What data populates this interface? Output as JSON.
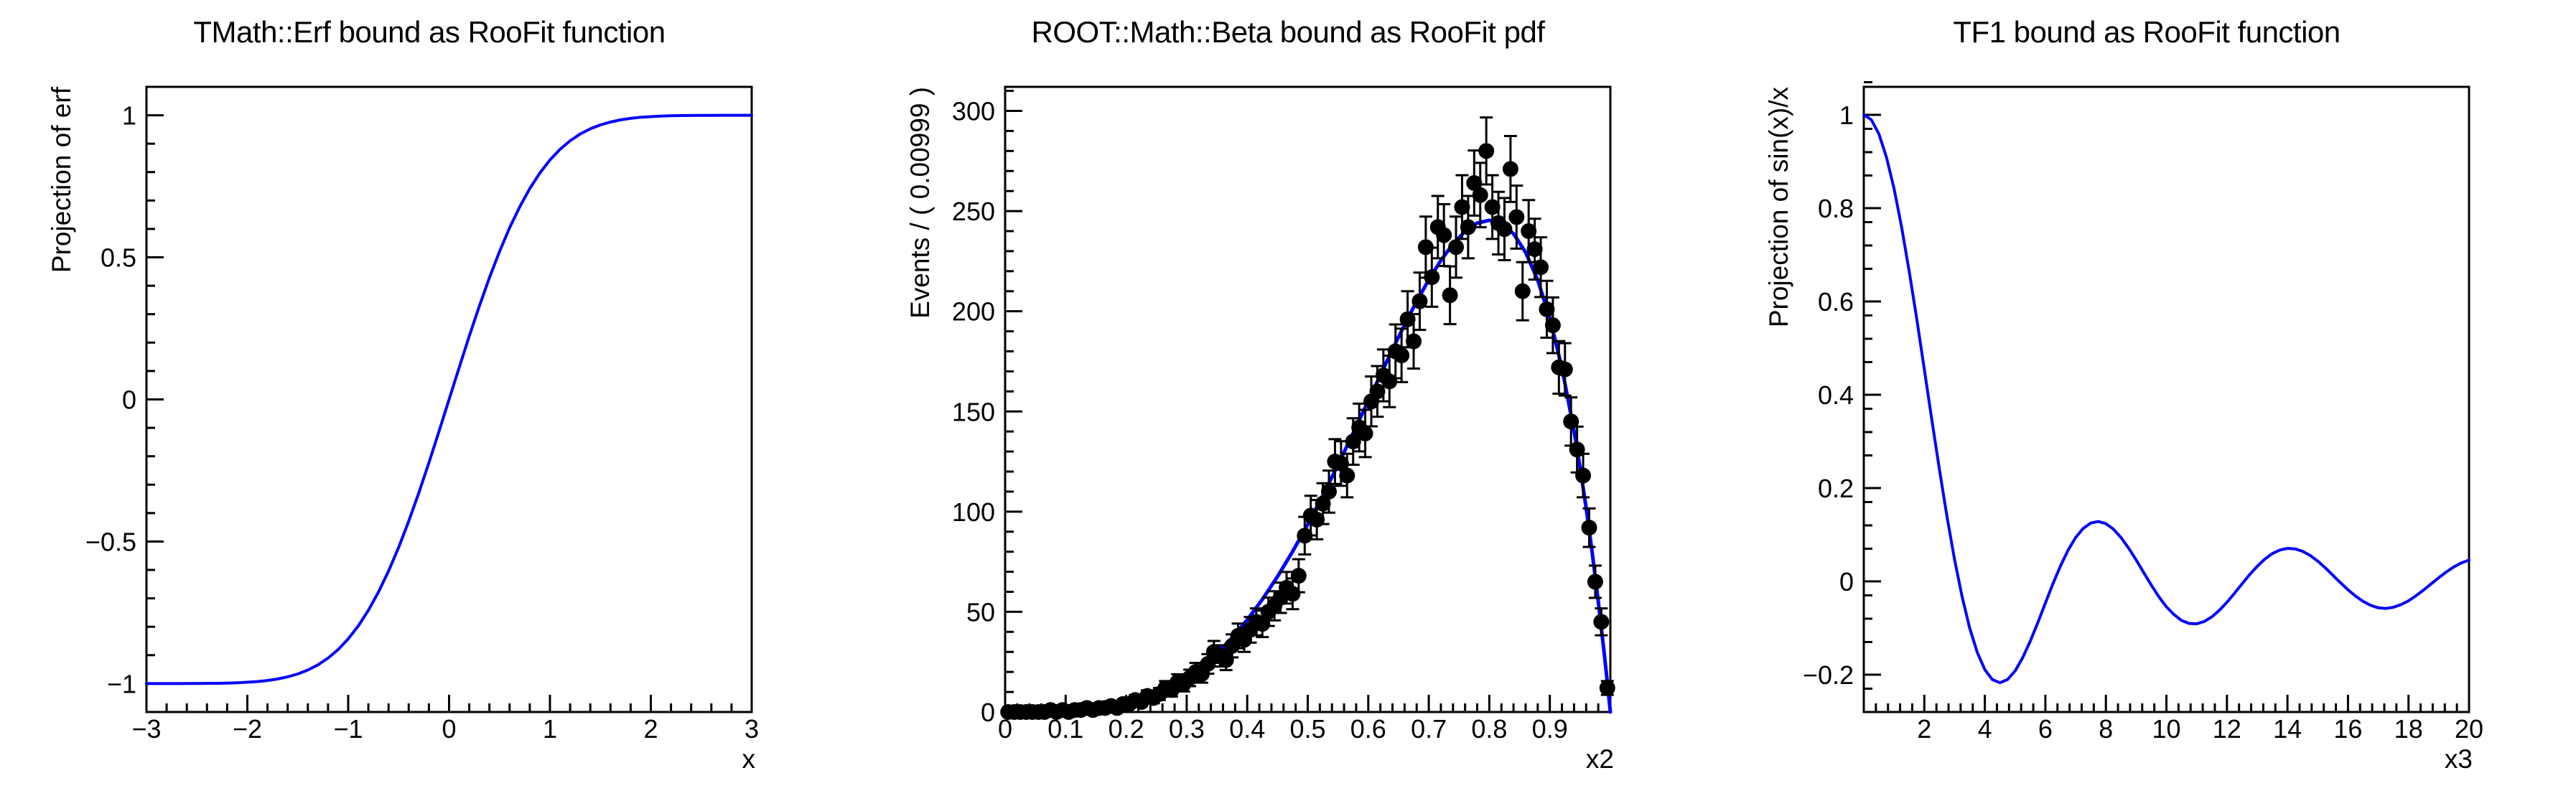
{
  "canvas": {
    "background": "#ffffff",
    "axis_color": "#000000",
    "curve_color": "#0000ff",
    "marker_color": "#000000"
  },
  "chart_data": [
    {
      "type": "line",
      "title": "TMath::Erf bound as RooFit function",
      "xlabel": "x",
      "ylabel": "Projection of erf",
      "xlim": [
        -3,
        3
      ],
      "ylim": [
        -1.1,
        1.1
      ],
      "grid": false,
      "legend": "none",
      "x_ticks": {
        "values": [
          -3,
          -2,
          -1,
          0,
          1,
          2,
          3
        ],
        "labels": [
          "−3",
          "−2",
          "−1",
          "0",
          "1",
          "2",
          "3"
        ],
        "minor_step": 0.2
      },
      "y_ticks": {
        "values": [
          -1,
          -0.5,
          0,
          0.5,
          1
        ],
        "labels": [
          "−1",
          "−0.5",
          "0",
          "0.5",
          "1"
        ],
        "minor_step": 0.1
      },
      "series": [
        {
          "name": "erf-curve",
          "style": "line",
          "color": "#0000ff",
          "width": 4,
          "x_start": -3,
          "x_step": 0.1,
          "y": [
            -1.0,
            -1.0,
            -0.9999,
            -0.9999,
            -0.9998,
            -0.9996,
            -0.9993,
            -0.9989,
            -0.9981,
            -0.997,
            -0.9953,
            -0.9928,
            -0.9891,
            -0.9838,
            -0.9763,
            -0.9661,
            -0.9523,
            -0.934,
            -0.9103,
            -0.8802,
            -0.8427,
            -0.7969,
            -0.7421,
            -0.6778,
            -0.6039,
            -0.5205,
            -0.4284,
            -0.3286,
            -0.2227,
            -0.1125,
            0,
            0.1125,
            0.2227,
            0.3286,
            0.4284,
            0.5205,
            0.6039,
            0.6778,
            0.7421,
            0.7969,
            0.8427,
            0.8802,
            0.9103,
            0.934,
            0.9523,
            0.9661,
            0.9763,
            0.9838,
            0.9891,
            0.9928,
            0.9953,
            0.997,
            0.9981,
            0.9989,
            0.9993,
            0.9996,
            0.9998,
            0.9999,
            0.9999,
            1.0,
            1.0
          ]
        }
      ]
    },
    {
      "type": "line+scatter",
      "title": "ROOT::Math::Beta bound as RooFit pdf",
      "xlabel": "x2",
      "ylabel": "Events / ( 0.00999 )",
      "xlim": [
        0,
        1
      ],
      "ylim": [
        0,
        312
      ],
      "grid": false,
      "legend": "none",
      "x_ticks": {
        "values": [
          0,
          0.1,
          0.2,
          0.3,
          0.4,
          0.5,
          0.6,
          0.7,
          0.8,
          0.9,
          1
        ],
        "labels": [
          "0",
          "0.1",
          "0.2",
          "0.3",
          "0.4",
          "0.5",
          "0.6",
          "0.7",
          "0.8",
          "0.9",
          ""
        ],
        "minor_step": 0.02
      },
      "y_ticks": {
        "values": [
          0,
          50,
          100,
          150,
          200,
          250,
          300
        ],
        "labels": [
          "0",
          "50",
          "100",
          "150",
          "200",
          "250",
          "300"
        ],
        "minor_step": 10
      },
      "series": [
        {
          "name": "beta-pdf-curve",
          "style": "line",
          "color": "#0000ff",
          "width": 5,
          "x": [
            0,
            0.05,
            0.1,
            0.15,
            0.2,
            0.25,
            0.275,
            0.3,
            0.325,
            0.35,
            0.375,
            0.4,
            0.425,
            0.45,
            0.475,
            0.5,
            0.525,
            0.55,
            0.575,
            0.6,
            0.625,
            0.65,
            0.675,
            0.7,
            0.72,
            0.74,
            0.76,
            0.78,
            0.8,
            0.82,
            0.84,
            0.86,
            0.88,
            0.9,
            0.92,
            0.94,
            0.95,
            0.96,
            0.97,
            0.98,
            0.99,
            0.995,
            1.0
          ],
          "y": [
            0,
            0.02,
            0.27,
            1.29,
            3.83,
            8.78,
            12.4,
            17.0,
            22.6,
            29.2,
            37.0,
            46.0,
            56.2,
            67.6,
            80.1,
            93.6,
            108.1,
            123.4,
            139.2,
            155.3,
            171.4,
            187.2,
            202.1,
            215.8,
            225.4,
            233.6,
            239.9,
            244.0,
            245.4,
            243.8,
            238.7,
            229.4,
            215.6,
            196.6,
            171.7,
            140.3,
            122.0,
            101.8,
            79.6,
            55.3,
            28.8,
            14.7,
            0
          ]
        },
        {
          "name": "toy-data-points",
          "style": "points_with_errors",
          "color": "#000000",
          "errors": "sqrt",
          "x_start": 0.005,
          "x_step": 0.01,
          "y": [
            0,
            0,
            0,
            0,
            0,
            0,
            0,
            1,
            0,
            1,
            0,
            1,
            1,
            2,
            1,
            2,
            2,
            3,
            2,
            4,
            4,
            6,
            5,
            8,
            7,
            9,
            12,
            11,
            15,
            14,
            17,
            20,
            19,
            24,
            30,
            28,
            26,
            33,
            38,
            36,
            41,
            45,
            44,
            50,
            53,
            57,
            62,
            59,
            68,
            88,
            98,
            96,
            104,
            110,
            125,
            124,
            118,
            135,
            142,
            139,
            155,
            160,
            168,
            165,
            180,
            178,
            196,
            185,
            205,
            232,
            217,
            242,
            238,
            208,
            232,
            252,
            242,
            264,
            258,
            280,
            252,
            244,
            241,
            271,
            247,
            210,
            240,
            231,
            222,
            201,
            193,
            172,
            171,
            145,
            131,
            118,
            92,
            65,
            45,
            12
          ]
        }
      ]
    },
    {
      "type": "line",
      "title": "TF1 bound as RooFit function",
      "xlabel": "x3",
      "ylabel": "Projection of sin(x)/x",
      "xlim": [
        0,
        20
      ],
      "ylim": [
        -0.28,
        1.06
      ],
      "grid": false,
      "legend": "none",
      "x_ticks": {
        "values": [
          0,
          2,
          4,
          6,
          8,
          10,
          12,
          14,
          16,
          18,
          20
        ],
        "labels": [
          "",
          "2",
          "4",
          "6",
          "8",
          "10",
          "12",
          "14",
          "16",
          "18",
          "20"
        ],
        "minor_step": 0.4
      },
      "y_ticks": {
        "values": [
          -0.2,
          0,
          0.2,
          0.4,
          0.6,
          0.8,
          1
        ],
        "labels": [
          "−0.2",
          "0",
          "0.2",
          "0.4",
          "0.6",
          "0.8",
          "1"
        ],
        "minor_step": 0.05
      },
      "series": [
        {
          "name": "sinc-curve",
          "style": "line",
          "color": "#0000ff",
          "width": 4,
          "x_start": 0,
          "x_step": 0.25,
          "y": [
            1.0,
            0.9896,
            0.9589,
            0.9089,
            0.8415,
            0.7592,
            0.665,
            0.5623,
            0.4546,
            0.3458,
            0.2394,
            0.1388,
            0.047,
            -0.0333,
            -0.1002,
            -0.1524,
            -0.1892,
            -0.2106,
            -0.2172,
            -0.2104,
            -0.1918,
            -0.1636,
            -0.1283,
            -0.0884,
            -0.0466,
            -0.0053,
            0.0331,
            0.0667,
            0.0939,
            0.1135,
            0.1251,
            0.1283,
            0.1237,
            0.1119,
            0.0939,
            0.0714,
            0.0458,
            0.0188,
            -0.0079,
            -0.0331,
            -0.0544,
            -0.0711,
            -0.0838,
            -0.0902,
            -0.0909,
            -0.086,
            -0.0761,
            -0.0618,
            -0.0447,
            -0.0255,
            -0.0053,
            0.0143,
            0.0323,
            0.0477,
            0.0595,
            0.0673,
            0.0708,
            0.0697,
            0.0645,
            0.0555,
            0.0434,
            0.029,
            0.0133,
            -0.0027,
            -0.018,
            -0.0316,
            -0.0429,
            -0.0514,
            -0.0566,
            -0.058,
            -0.0556,
            -0.0499,
            -0.0417,
            -0.0308,
            -0.0185,
            -0.0053,
            0.0079,
            0.0202,
            0.0311,
            0.0397,
            0.0456
          ]
        }
      ]
    }
  ]
}
